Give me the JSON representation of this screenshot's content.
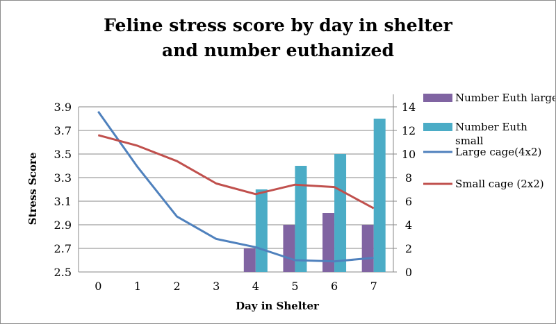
{
  "chart_data": {
    "type": "bar+line",
    "title": [
      "Feline stress score by day in shelter",
      "and number euthanized"
    ],
    "xlabel": "Day in Shelter",
    "ylabel": "Stress Score",
    "categories": [
      "0",
      "1",
      "2",
      "3",
      "4",
      "5",
      "6",
      "7"
    ],
    "y_left": {
      "min": 2.5,
      "max": 3.9,
      "ticks": [
        "3.9",
        "3.7",
        "3.5",
        "3.3",
        "3.1",
        "2.9",
        "2.7",
        "2.5"
      ]
    },
    "y_right": {
      "min": 0,
      "max": 14,
      "ticks": [
        "14",
        "12",
        "10",
        "8",
        "6",
        "4",
        "2",
        "0"
      ]
    },
    "grid": "horizontal",
    "legend_position": "right",
    "series": [
      {
        "name": "Number Euth large",
        "kind": "bar",
        "axis": "right",
        "color": "#8064a2",
        "values": [
          null,
          null,
          null,
          null,
          2,
          4,
          5,
          4
        ]
      },
      {
        "name": "Number Euth small",
        "kind": "bar",
        "axis": "right",
        "color": "#4bacc6",
        "values": [
          null,
          null,
          null,
          null,
          7,
          9,
          10,
          13
        ]
      },
      {
        "name": "Large cage(4x2)",
        "kind": "line",
        "axis": "left",
        "color": "#4f81bd",
        "values": [
          3.86,
          3.39,
          2.97,
          2.78,
          2.71,
          2.6,
          2.59,
          2.62
        ]
      },
      {
        "name": "Small cage (2x2)",
        "kind": "line",
        "axis": "left",
        "color": "#c0504d",
        "values": [
          3.66,
          3.57,
          3.44,
          3.25,
          3.16,
          3.24,
          3.22,
          3.04
        ]
      }
    ]
  }
}
